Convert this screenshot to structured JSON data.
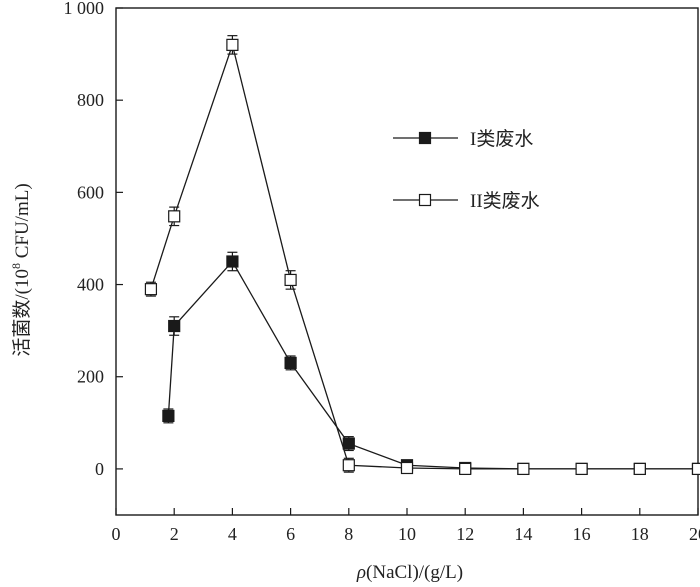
{
  "chart_data": {
    "type": "line",
    "title": "",
    "xlabel_var": "ρ",
    "xlabel_rest": "(NaCl)/(g/L)",
    "ylabel_text": "活菌数/(10",
    "ylabel_sup": "8",
    "ylabel_tail": " CFU/mL)",
    "xlim": [
      0,
      20
    ],
    "ylim": [
      -100,
      1000
    ],
    "xticks": [
      0,
      2,
      4,
      6,
      8,
      10,
      12,
      14,
      16,
      18,
      20
    ],
    "yticks": [
      0,
      200,
      400,
      600,
      800,
      1000
    ],
    "ytick_labels": [
      "0",
      "200",
      "400",
      "600",
      "800",
      "1 000"
    ],
    "grid": false,
    "legend_position": "upper-right",
    "series": [
      {
        "name": "I类废水",
        "marker": "filled-square",
        "color": "#1a1a1a",
        "x": [
          1.8,
          2,
          4,
          6,
          8,
          10,
          12,
          14,
          16,
          18,
          20
        ],
        "y": [
          115,
          310,
          450,
          230,
          55,
          8,
          2,
          0,
          0,
          0,
          0
        ],
        "err": [
          15,
          20,
          20,
          15,
          15,
          8,
          5,
          0,
          0,
          0,
          0
        ]
      },
      {
        "name": "II类废水",
        "marker": "open-square",
        "color": "#1a1a1a",
        "x": [
          1.2,
          2,
          4,
          6,
          8,
          10,
          12,
          14,
          16,
          18,
          20
        ],
        "y": [
          390,
          548,
          920,
          410,
          8,
          2,
          0,
          0,
          0,
          0,
          0
        ],
        "err": [
          15,
          20,
          20,
          20,
          15,
          8,
          5,
          0,
          0,
          0,
          0
        ]
      }
    ]
  }
}
